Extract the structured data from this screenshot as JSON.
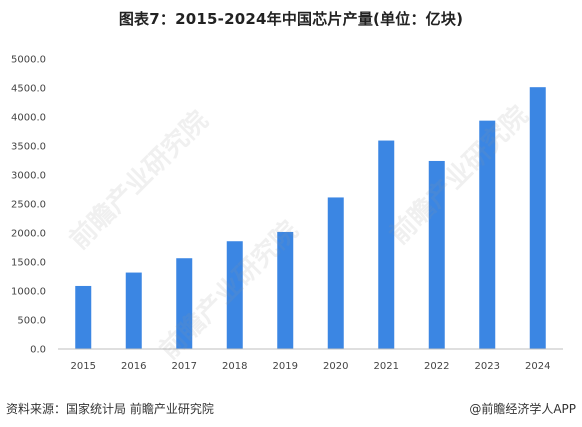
{
  "title": "图表7：2015-2024年中国芯片产量(单位：亿块)",
  "source": "资料来源：国家统计局 前瞻产业研究院",
  "credit": "@前瞻经济学人APP",
  "watermark_text": "前瞻产业研究院",
  "colors": {
    "bar": "#3b86e3",
    "axis": "#bfbfbf",
    "text": "#333333"
  },
  "chart_data": {
    "type": "bar",
    "title": "图表7：2015-2024年中国芯片产量(单位：亿块)",
    "categories": [
      "2015",
      "2016",
      "2017",
      "2018",
      "2019",
      "2020",
      "2021",
      "2022",
      "2023",
      "2024"
    ],
    "values": [
      1087,
      1318,
      1565,
      1858,
      2018,
      2613,
      3594,
      3242,
      3937,
      4514
    ],
    "ylim": [
      0,
      5000
    ],
    "yticks": [
      "0.0",
      "500.0",
      "1000.0",
      "1500.0",
      "2000.0",
      "2500.0",
      "3000.0",
      "3500.0",
      "4000.0",
      "4500.0",
      "5000.0"
    ],
    "xlabel": "",
    "ylabel": "",
    "grid": false,
    "legend": "none"
  }
}
